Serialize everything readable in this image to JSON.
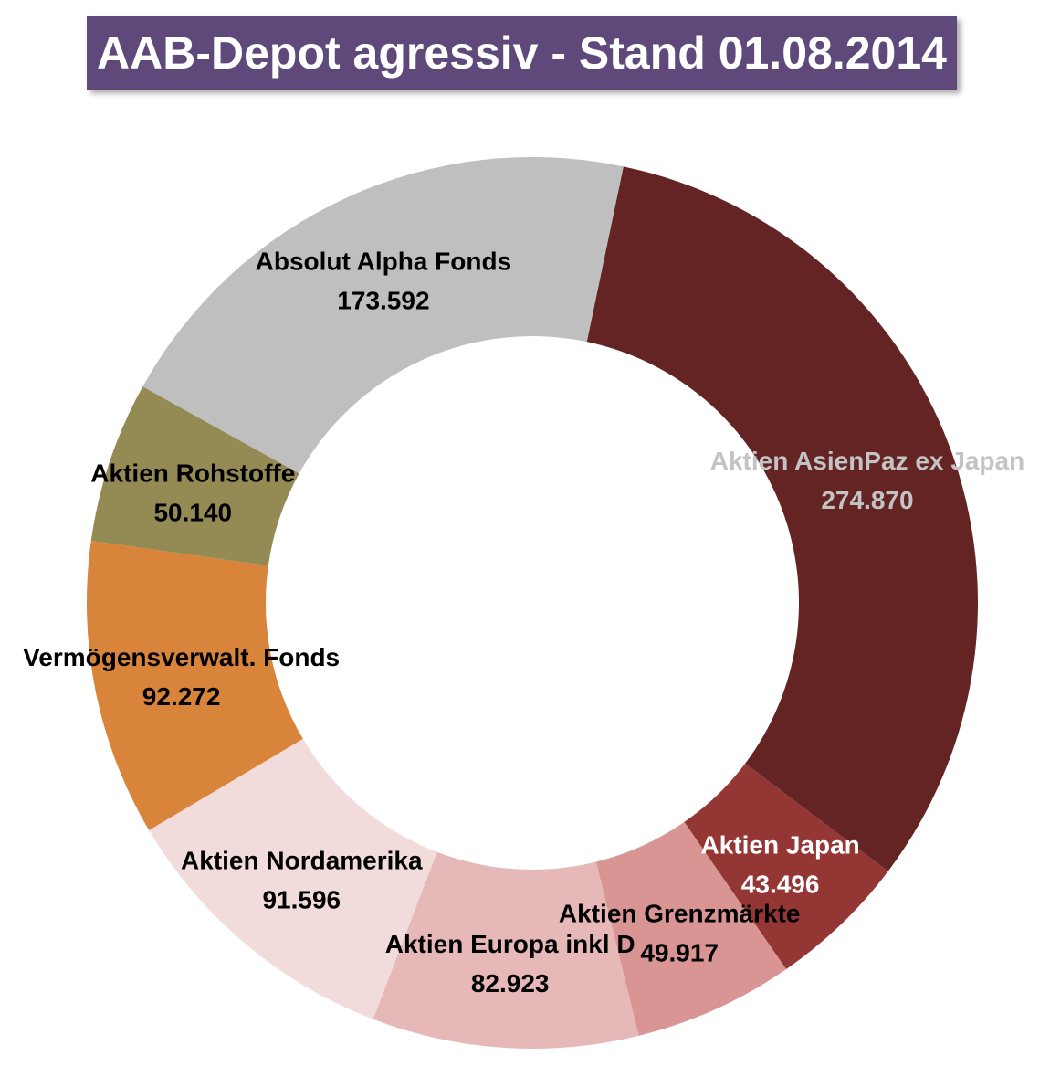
{
  "chart_data": {
    "type": "pie",
    "variant": "donut",
    "title": "AAB-Depot agressiv - Stand 01.08.2014",
    "start_angle_deg": 11.8,
    "direction": "clockwise",
    "slices": [
      {
        "label": "Aktien AsienPaz ex Japan",
        "value": 274870,
        "value_text": "274.870",
        "color": "#632423",
        "text_color": "#c3c3c3"
      },
      {
        "label": "Aktien Japan",
        "value": 43496,
        "value_text": "43.496",
        "color": "#943634",
        "text_color": "#ffffff"
      },
      {
        "label": "Aktien Grenzmärkte",
        "value": 49917,
        "value_text": "49.917",
        "color": "#d99594",
        "text_color": "#000000"
      },
      {
        "label": "Aktien Europa inkl D",
        "value": 82923,
        "value_text": "82.923",
        "color": "#e6b9b8",
        "text_color": "#000000"
      },
      {
        "label": "Aktien Nordamerika",
        "value": 91596,
        "value_text": "91.596",
        "color": "#f2dcdb",
        "text_color": "#000000"
      },
      {
        "label": "Vermögensverwalt. Fonds",
        "value": 92272,
        "value_text": "92.272",
        "color": "#d9843b",
        "text_color": "#000000"
      },
      {
        "label": "Aktien Rohstoffe",
        "value": 50140,
        "value_text": "50.140",
        "color": "#948a54",
        "text_color": "#000000"
      },
      {
        "label": "Absolut Alpha Fonds",
        "value": 173592,
        "value_text": "173.592",
        "color": "#bfbfbf",
        "text_color": "#000000"
      }
    ]
  }
}
